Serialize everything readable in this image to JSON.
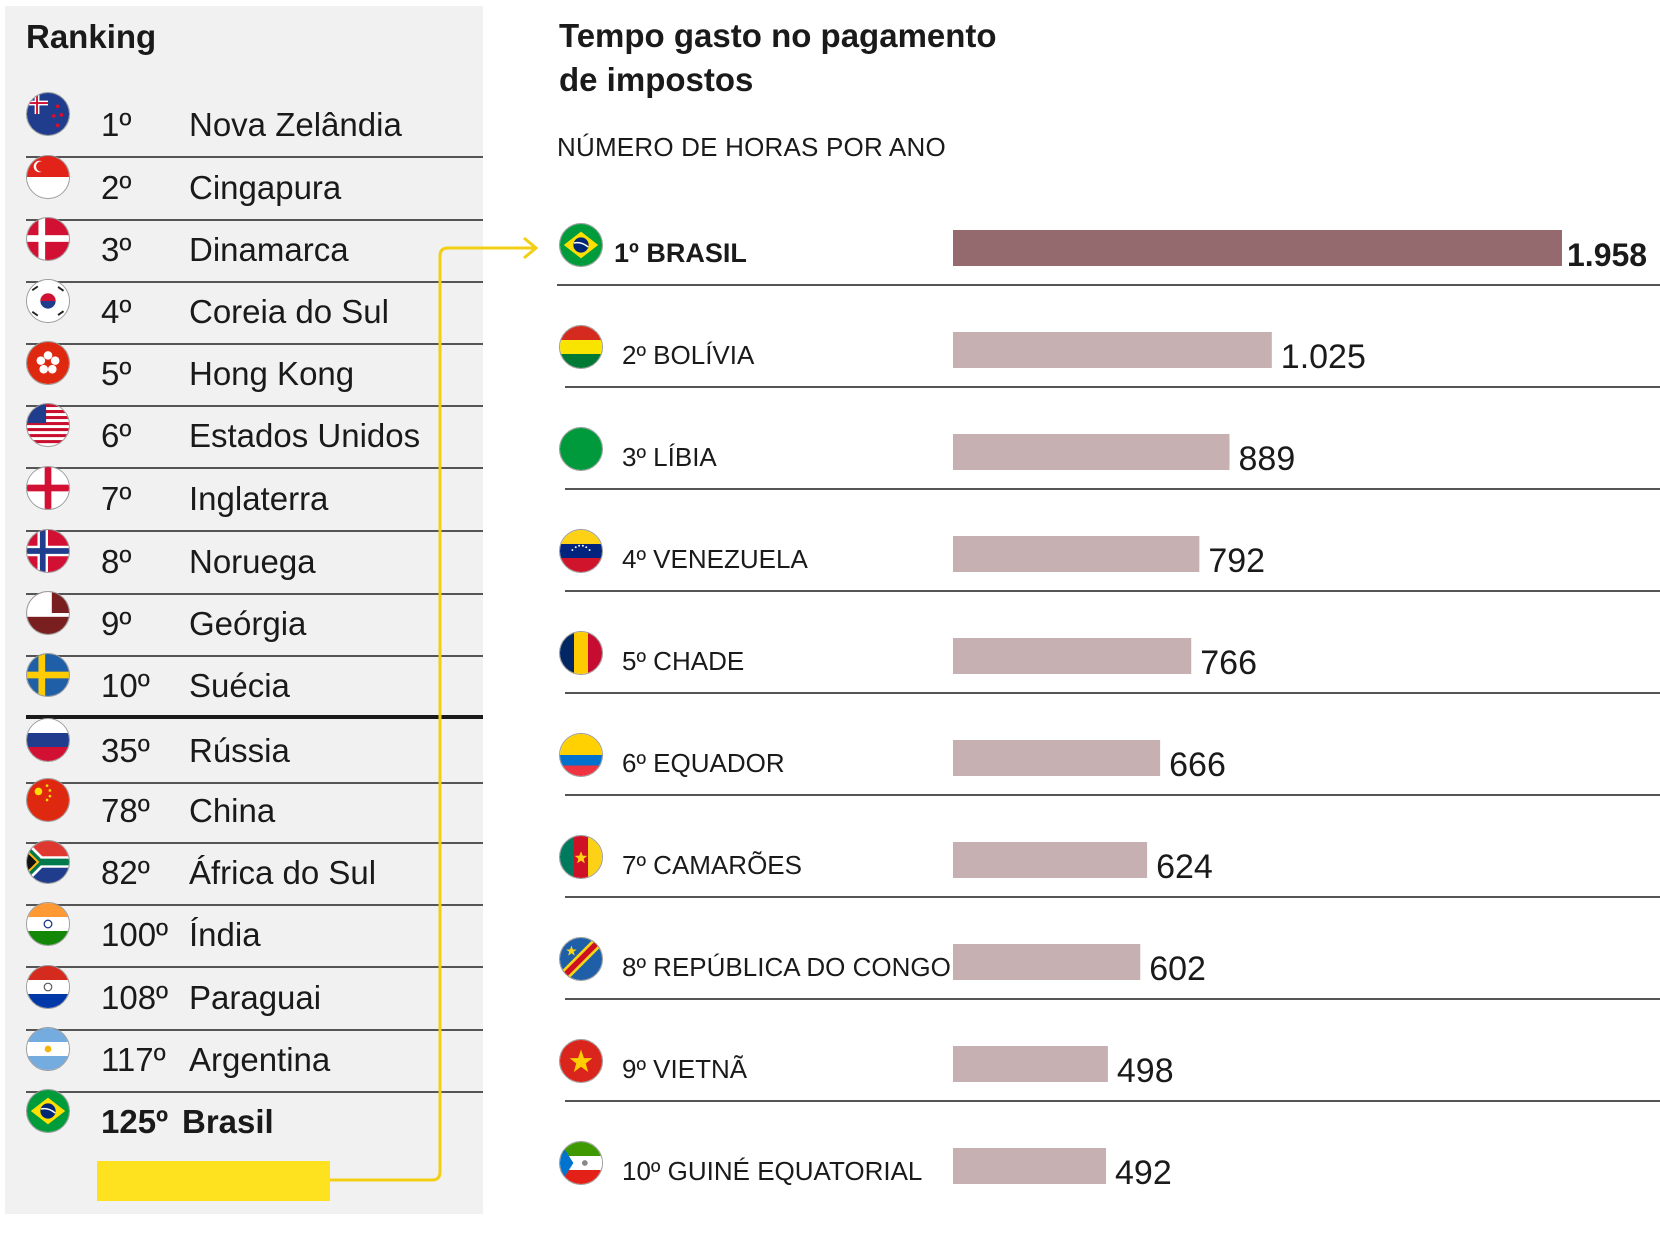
{
  "ranking": {
    "title": "Ranking",
    "items": [
      {
        "pos": "1º",
        "country": "Nova Zelândia",
        "flag": "new-zealand-flag-icon"
      },
      {
        "pos": "2º",
        "country": "Cingapura",
        "flag": "singapore-flag-icon"
      },
      {
        "pos": "3º",
        "country": "Dinamarca",
        "flag": "denmark-flag-icon"
      },
      {
        "pos": "4º",
        "country": "Coreia do Sul",
        "flag": "south-korea-flag-icon"
      },
      {
        "pos": "5º",
        "country": "Hong Kong",
        "flag": "hong-kong-flag-icon"
      },
      {
        "pos": "6º",
        "country": "Estados Unidos",
        "flag": "usa-flag-icon"
      },
      {
        "pos": "7º",
        "country": "Inglaterra",
        "flag": "england-flag-icon"
      },
      {
        "pos": "8º",
        "country": "Noruega",
        "flag": "norway-flag-icon"
      },
      {
        "pos": "9º",
        "country": "Geórgia",
        "flag": "georgia-flag-icon"
      },
      {
        "pos": "10º",
        "country": "Suécia",
        "flag": "sweden-flag-icon"
      },
      {
        "pos": "35º",
        "country": "Rússia",
        "flag": "russia-flag-icon"
      },
      {
        "pos": "78º",
        "country": "China",
        "flag": "china-flag-icon"
      },
      {
        "pos": "82º",
        "country": "África do Sul",
        "flag": "south-africa-flag-icon"
      },
      {
        "pos": "100º",
        "country": "Índia",
        "flag": "india-flag-icon"
      },
      {
        "pos": "108º",
        "country": "Paraguai",
        "flag": "paraguay-flag-icon"
      },
      {
        "pos": "117º",
        "country": "Argentina",
        "flag": "argentina-flag-icon"
      },
      {
        "pos": "125º",
        "country": "Brasil",
        "flag": "brazil-flag-icon"
      }
    ]
  },
  "colors": {
    "panel_bg": "#f1f1f1",
    "highlight": "#ffe21f",
    "bar_highlight": "#946a6e",
    "bar_default": "#c6b0b1",
    "connector": "#f2cf14"
  },
  "chart_data": {
    "type": "bar",
    "orientation": "horizontal",
    "title": "Tempo gasto no pagamento de impostos",
    "title_lines": [
      "Tempo gasto no pagamento",
      "de impostos"
    ],
    "subtitle": "NÚMERO DE HORAS POR ANO",
    "xlabel": "",
    "ylabel": "",
    "xlim": [
      0,
      1958
    ],
    "categories": [
      "1º BRASIL",
      "2º BOLÍVIA",
      "3º LÍBIA",
      "4º VENEZUELA",
      "5º CHADE",
      "6º EQUADOR",
      "7º CAMARÕES",
      "8º REPÚBLICA DO CONGO",
      "9º VIETNÃ",
      "10º GUINÉ EQUATORIAL"
    ],
    "values": [
      1958,
      1025,
      889,
      792,
      766,
      666,
      624,
      602,
      498,
      492
    ],
    "value_labels": [
      "1.958",
      "1.025",
      "889",
      "792",
      "766",
      "666",
      "624",
      "602",
      "498",
      "492"
    ],
    "flags": [
      "brazil-flag-icon",
      "bolivia-flag-icon",
      "libya-flag-icon",
      "venezuela-flag-icon",
      "chad-flag-icon",
      "ecuador-flag-icon",
      "cameroon-flag-icon",
      "congo-flag-icon",
      "vietnam-flag-icon",
      "equatorial-guinea-flag-icon"
    ],
    "highlight_index": 0
  }
}
